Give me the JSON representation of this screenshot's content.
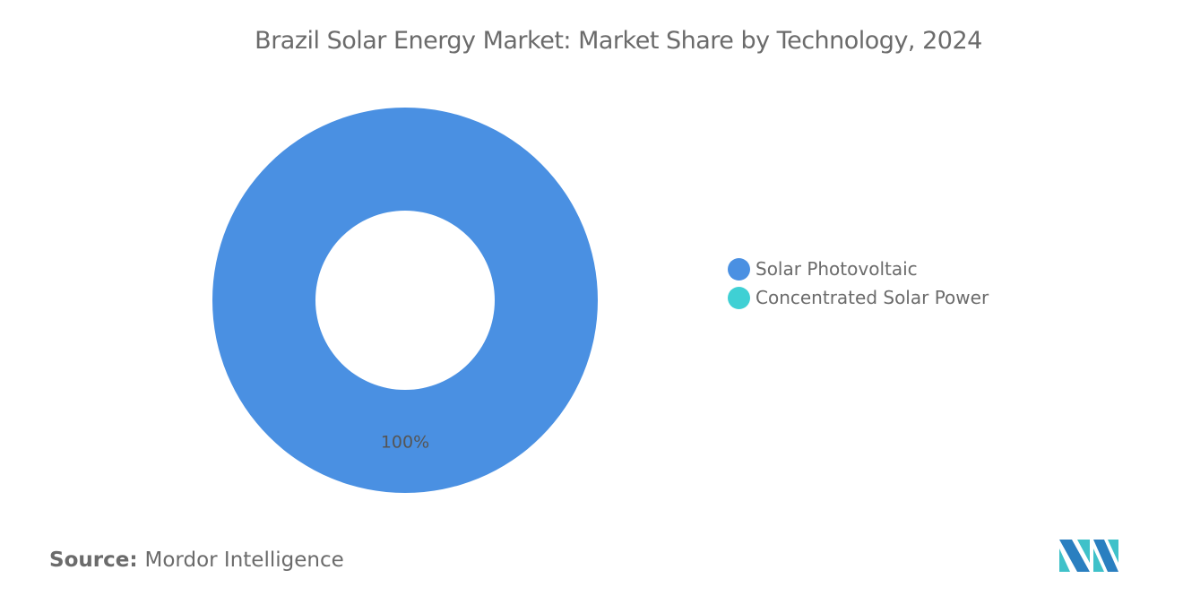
{
  "chart_data": {
    "type": "pie",
    "variant": "donut",
    "title": "Brazil Solar Energy Market: Market Share by Technology, 2024",
    "categories": [
      "Solar Photovoltaic",
      "Concentrated Solar Power"
    ],
    "values": [
      100,
      0
    ],
    "data_labels": [
      "100%",
      ""
    ],
    "colors": [
      "#4a90e2",
      "#3fd0d4"
    ],
    "legend_position": "right"
  },
  "source": {
    "label": "Source:",
    "value": "Mordor Intelligence"
  },
  "logo": {
    "colors": [
      "#2a7fc0",
      "#3fc1c9"
    ]
  }
}
